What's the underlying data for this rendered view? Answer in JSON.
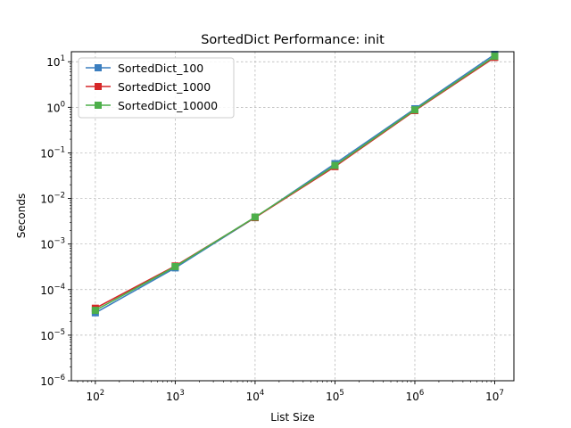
{
  "chart_data": {
    "type": "line",
    "title": "SortedDict Performance: init",
    "xlabel": "List Size",
    "ylabel": "Seconds",
    "xscale": "log",
    "yscale": "log",
    "x": [
      100,
      1000,
      10000,
      100000,
      1000000,
      10000000
    ],
    "x_ticks": [
      {
        "base": "10",
        "exp": "2"
      },
      {
        "base": "10",
        "exp": "3"
      },
      {
        "base": "10",
        "exp": "4"
      },
      {
        "base": "10",
        "exp": "5"
      },
      {
        "base": "10",
        "exp": "6"
      },
      {
        "base": "10",
        "exp": "7"
      }
    ],
    "y_ticks": [
      {
        "base": "10",
        "exp": "−6",
        "value": 1e-06
      },
      {
        "base": "10",
        "exp": "−5",
        "value": 1e-05
      },
      {
        "base": "10",
        "exp": "−4",
        "value": 0.0001
      },
      {
        "base": "10",
        "exp": "−3",
        "value": 0.001
      },
      {
        "base": "10",
        "exp": "−2",
        "value": 0.01
      },
      {
        "base": "10",
        "exp": "−1",
        "value": 0.1
      },
      {
        "base": "10",
        "exp": "0",
        "value": 1
      },
      {
        "base": "10",
        "exp": "1",
        "value": 10
      }
    ],
    "grid": true,
    "legend_position": "top-left",
    "series": [
      {
        "name": "SortedDict_100",
        "color": "#3b7ebf",
        "marker": "square",
        "values": [
          3.1e-05,
          0.0003,
          0.0038,
          0.058,
          0.93,
          14.5
        ]
      },
      {
        "name": "SortedDict_1000",
        "color": "#d62728",
        "marker": "square",
        "values": [
          3.9e-05,
          0.00033,
          0.0038,
          0.05,
          0.85,
          12.5
        ]
      },
      {
        "name": "SortedDict_10000",
        "color": "#4daf4a",
        "marker": "square",
        "values": [
          3.5e-05,
          0.00032,
          0.0039,
          0.053,
          0.88,
          13.2
        ]
      }
    ]
  }
}
